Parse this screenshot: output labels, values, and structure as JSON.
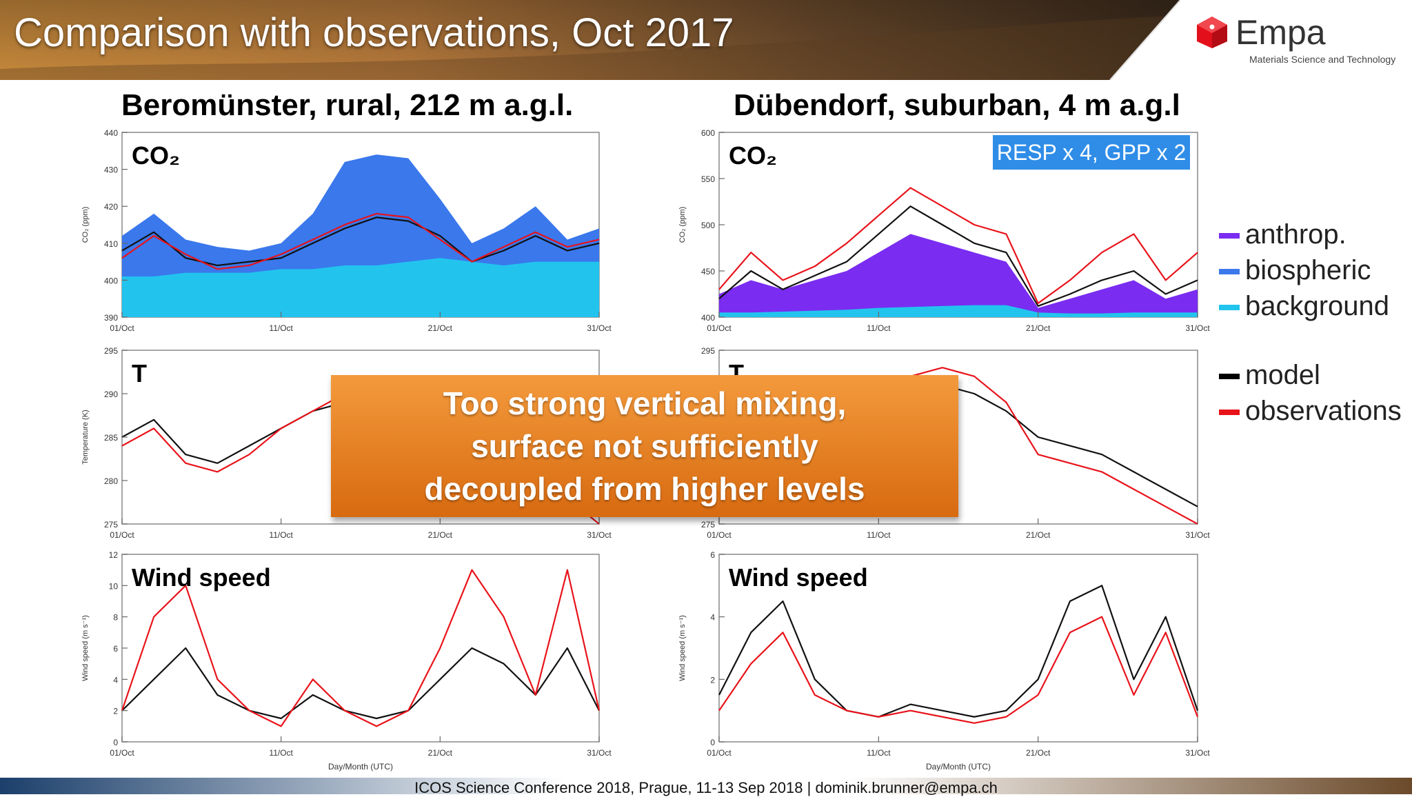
{
  "slide": {
    "title": "Comparison with observations, Oct 2017",
    "footer": "ICOS Science Conference 2018,  Prague, 11-13 Sep 2018 | dominik.brunner@empa.ch",
    "logo": {
      "word": "Empa",
      "subtitle": "Materials Science and Technology",
      "icon": "empa-cube-logo"
    },
    "callout": {
      "lines": [
        "Too strong vertical mixing,",
        "surface not sufficiently",
        "decoupled from higher levels"
      ],
      "color": "#e8801f"
    },
    "legend": [
      {
        "label": "anthrop.",
        "color": "#7a2cf0"
      },
      {
        "label": "biospheric",
        "color": "#3a78ec"
      },
      {
        "label": "background",
        "color": "#22c4ee"
      },
      {
        "label": "model",
        "color": "#000000"
      },
      {
        "label": "observations",
        "color": "#e8131a"
      }
    ],
    "colors": {
      "anthrop": "#7a2cf0",
      "biospheric": "#3a78ec",
      "background": "#22c4ee",
      "model": "#111111",
      "observations": "#e8131a"
    }
  },
  "columns": [
    {
      "title": "Beromünster, rural, 212 m a.g.l."
    },
    {
      "title": "Dübendorf, suburban, 4 m a.g.l"
    }
  ],
  "annotation": {
    "resp_gpp": "RESP x 4, GPP x 2"
  },
  "chart_data": [
    {
      "type": "area",
      "panel": "beromunster-co2",
      "label": "CO₂",
      "ylabel": "CO₂ (ppm)",
      "ylim": [
        390,
        440
      ],
      "yticks": [
        390,
        400,
        410,
        420,
        430,
        440
      ],
      "xticks": [
        "01/Oct",
        "11/Oct",
        "21/Oct",
        "31/Oct"
      ],
      "x": [
        1,
        3,
        5,
        7,
        9,
        11,
        13,
        15,
        17,
        19,
        21,
        23,
        25,
        27,
        29,
        31
      ],
      "series": [
        {
          "name": "background",
          "values": [
            401,
            401,
            402,
            402,
            402,
            403,
            403,
            404,
            404,
            405,
            406,
            405,
            404,
            405,
            405,
            405
          ]
        },
        {
          "name": "biospheric",
          "values": [
            412,
            418,
            411,
            409,
            408,
            410,
            418,
            432,
            434,
            433,
            422,
            410,
            414,
            420,
            411,
            414
          ]
        },
        {
          "name": "model",
          "values": [
            408,
            413,
            406,
            404,
            405,
            406,
            410,
            414,
            417,
            416,
            412,
            405,
            408,
            412,
            408,
            410
          ]
        },
        {
          "name": "observations",
          "values": [
            406,
            412,
            407,
            403,
            404,
            407,
            411,
            415,
            418,
            417,
            411,
            405,
            409,
            413,
            409,
            411
          ]
        }
      ]
    },
    {
      "type": "line",
      "panel": "beromunster-temperature",
      "label": "T",
      "ylabel": "Temperature (K)",
      "ylim": [
        275,
        295
      ],
      "yticks": [
        275,
        280,
        285,
        290,
        295
      ],
      "xticks": [
        "01/Oct",
        "11/Oct",
        "21/Oct",
        "31/Oct"
      ],
      "x": [
        1,
        3,
        5,
        7,
        9,
        11,
        13,
        15,
        17,
        19,
        21,
        23,
        25,
        27,
        29,
        31
      ],
      "series": [
        {
          "name": "model",
          "values": [
            285,
            287,
            283,
            282,
            284,
            286,
            288,
            289,
            290,
            288,
            286,
            284,
            283,
            281,
            279,
            276
          ]
        },
        {
          "name": "observations",
          "values": [
            284,
            286,
            282,
            281,
            283,
            286,
            288,
            290,
            291,
            289,
            286,
            283,
            282,
            280,
            278,
            275
          ]
        }
      ]
    },
    {
      "type": "line",
      "panel": "beromunster-wind",
      "label": "Wind speed",
      "ylabel": "Wind speed (m s⁻¹)",
      "ylim": [
        0,
        12
      ],
      "yticks": [
        0,
        2,
        4,
        6,
        8,
        10,
        12
      ],
      "xticks": [
        "01/Oct",
        "11/Oct",
        "21/Oct",
        "31/Oct"
      ],
      "xlabel": "Day/Month (UTC)",
      "x": [
        1,
        3,
        5,
        7,
        9,
        11,
        13,
        15,
        17,
        19,
        21,
        23,
        25,
        27,
        29,
        31
      ],
      "series": [
        {
          "name": "model",
          "values": [
            2,
            4,
            6,
            3,
            2,
            1.5,
            3,
            2,
            1.5,
            2,
            4,
            6,
            5,
            3,
            6,
            2
          ]
        },
        {
          "name": "observations",
          "values": [
            2,
            8,
            10,
            4,
            2,
            1,
            4,
            2,
            1,
            2,
            6,
            11,
            8,
            3,
            11,
            2
          ]
        }
      ]
    },
    {
      "type": "area",
      "panel": "dubendorf-co2",
      "label": "CO₂",
      "ylabel": "CO₂ (ppm)",
      "ylim": [
        400,
        600
      ],
      "yticks": [
        400,
        450,
        500,
        550,
        600
      ],
      "xticks": [
        "01/Oct",
        "11/Oct",
        "21/Oct",
        "31/Oct"
      ],
      "x": [
        1,
        3,
        5,
        7,
        9,
        11,
        13,
        15,
        17,
        19,
        21,
        23,
        25,
        27,
        29,
        31
      ],
      "series": [
        {
          "name": "background",
          "values": [
            405,
            405,
            406,
            407,
            408,
            410,
            411,
            412,
            413,
            413,
            405,
            404,
            404,
            405,
            405,
            405
          ]
        },
        {
          "name": "anthrop",
          "values": [
            425,
            440,
            430,
            440,
            450,
            470,
            490,
            480,
            470,
            460,
            410,
            420,
            430,
            440,
            420,
            430
          ]
        },
        {
          "name": "biospheric",
          "values": [
            420,
            435,
            428,
            436,
            446,
            465,
            485,
            476,
            468,
            455,
            408,
            418,
            425,
            435,
            418,
            425
          ]
        },
        {
          "name": "model",
          "values": [
            420,
            450,
            430,
            445,
            460,
            490,
            520,
            500,
            480,
            470,
            412,
            425,
            440,
            450,
            425,
            440
          ]
        },
        {
          "name": "observations",
          "values": [
            430,
            470,
            440,
            455,
            480,
            510,
            540,
            520,
            500,
            490,
            415,
            440,
            470,
            490,
            440,
            470
          ]
        }
      ]
    },
    {
      "type": "line",
      "panel": "dubendorf-temperature",
      "label": "T",
      "ylim": [
        275,
        295
      ],
      "yticks": [
        275,
        280,
        285,
        290,
        295
      ],
      "xticks": [
        "01/Oct",
        "11/Oct",
        "21/Oct",
        "31/Oct"
      ],
      "x": [
        1,
        3,
        5,
        7,
        9,
        11,
        13,
        15,
        17,
        19,
        21,
        23,
        25,
        27,
        29,
        31
      ],
      "series": [
        {
          "name": "model",
          "values": [
            286,
            289,
            285,
            283,
            285,
            288,
            290,
            291,
            290,
            288,
            285,
            284,
            283,
            281,
            279,
            277
          ]
        },
        {
          "name": "observations",
          "values": [
            284,
            292,
            283,
            282,
            286,
            289,
            292,
            293,
            292,
            289,
            283,
            282,
            281,
            279,
            277,
            275
          ]
        }
      ]
    },
    {
      "type": "line",
      "panel": "dubendorf-wind",
      "label": "Wind speed",
      "ylabel": "Wind speed (m s⁻¹)",
      "ylim": [
        0,
        6
      ],
      "yticks": [
        0,
        2,
        4,
        6
      ],
      "xticks": [
        "01/Oct",
        "11/Oct",
        "21/Oct",
        "31/Oct"
      ],
      "xlabel": "Day/Month (UTC)",
      "x": [
        1,
        3,
        5,
        7,
        9,
        11,
        13,
        15,
        17,
        19,
        21,
        23,
        25,
        27,
        29,
        31
      ],
      "series": [
        {
          "name": "model",
          "values": [
            1.5,
            3.5,
            4.5,
            2,
            1,
            0.8,
            1.2,
            1,
            0.8,
            1,
            2,
            4.5,
            5,
            2,
            4,
            1
          ]
        },
        {
          "name": "observations",
          "values": [
            1,
            2.5,
            3.5,
            1.5,
            1,
            0.8,
            1,
            0.8,
            0.6,
            0.8,
            1.5,
            3.5,
            4,
            1.5,
            3.5,
            0.8
          ]
        }
      ]
    }
  ]
}
